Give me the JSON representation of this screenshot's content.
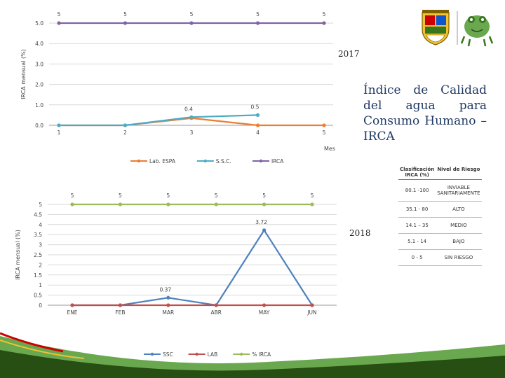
{
  "title": "Índice de Calidad del agua para Consumo Humano – IRCA",
  "year_2017": "2017",
  "year_2018": "2018",
  "chart_data": [
    {
      "type": "line",
      "ylabel": "IRCA mensual (%)",
      "xlabel": "Mes",
      "x": [
        1,
        2,
        3,
        4,
        5
      ],
      "x_ticks": [
        "1",
        "2",
        "3",
        "4",
        "5"
      ],
      "ylim": [
        0,
        5
      ],
      "y_ticks": [
        "0.0",
        "1.0",
        "2.0",
        "3.0",
        "4.0",
        "5.0"
      ],
      "grid": true,
      "legend_position": "bottom",
      "series": [
        {
          "name": "Lab. ESPA",
          "color": "#ed7d31",
          "values": [
            0,
            0,
            0.35,
            0,
            0
          ],
          "labels": [
            "",
            "",
            "",
            "",
            ""
          ]
        },
        {
          "name": "S.S.C.",
          "color": "#4bacc6",
          "values": [
            0,
            0,
            0.4,
            0.5,
            null
          ],
          "labels": [
            "",
            "",
            "0.4",
            "0.5",
            ""
          ]
        },
        {
          "name": "IRCA",
          "color": "#8064a2",
          "values": [
            5,
            5,
            5,
            5,
            5
          ],
          "labels": [
            "5",
            "5",
            "5",
            "5",
            "5"
          ]
        }
      ]
    },
    {
      "type": "line",
      "ylabel": "IRCA mensual (%)",
      "x": [
        "ENE",
        "FEB",
        "MAR",
        "ABR",
        "MAY",
        "JUN"
      ],
      "ylim": [
        0,
        5
      ],
      "y_ticks": [
        "0",
        "0.5",
        "1",
        "1.5",
        "2",
        "2.5",
        "3",
        "3.5",
        "4",
        "4.5",
        "5"
      ],
      "grid": true,
      "legend_position": "bottom",
      "series": [
        {
          "name": "SSC",
          "color": "#4f81bd",
          "values": [
            0,
            0,
            0.37,
            0,
            3.72,
            0
          ],
          "labels": [
            "",
            "",
            "0.37",
            "",
            "3.72",
            ""
          ]
        },
        {
          "name": "LAB",
          "color": "#c0504d",
          "values": [
            0,
            0,
            0,
            0,
            0,
            0
          ],
          "labels": [
            "",
            "",
            "",
            "",
            "",
            ""
          ]
        },
        {
          "name": "% IRCA",
          "color": "#9bbb59",
          "values": [
            5,
            5,
            5,
            5,
            5,
            5
          ],
          "labels": [
            "5",
            "5",
            "5",
            "5",
            "5",
            "5"
          ]
        }
      ]
    }
  ],
  "classification_table": {
    "headers": [
      "Clasificación IRCA (%)",
      "Nivel de Riesgo"
    ],
    "rows": [
      {
        "range": "80.1 -100",
        "level": "INVIABLE SANITARIAMENTE"
      },
      {
        "range": "35.1 - 80",
        "level": "ALTO"
      },
      {
        "range": "14.1 – 35",
        "level": "MEDIO"
      },
      {
        "range": "5.1 - 14",
        "level": "BAJO"
      },
      {
        "range": "0 - 5",
        "level": "SIN RIESGO"
      }
    ]
  },
  "colors": {
    "title": "#1f3864",
    "footer_green": "#6aa84f",
    "footer_dark": "#274e13",
    "footer_red": "#cc0000"
  }
}
